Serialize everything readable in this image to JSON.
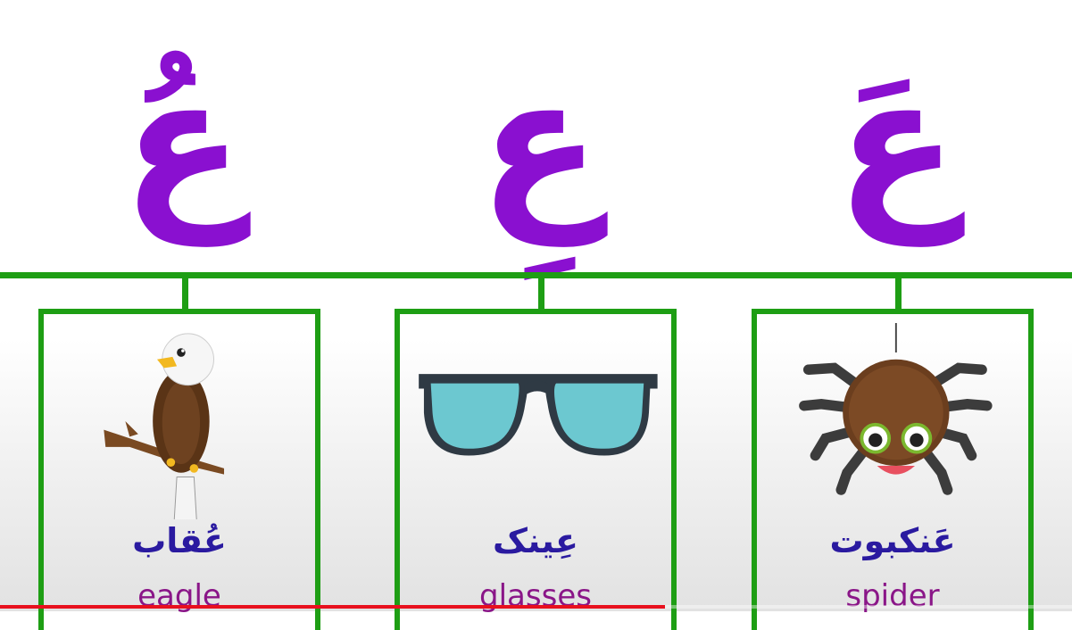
{
  "letters": [
    {
      "glyph": "عُ",
      "vowel": "damma"
    },
    {
      "glyph": "عِ",
      "vowel": "kasra"
    },
    {
      "glyph": "عَ",
      "vowel": "fatha"
    }
  ],
  "cards": [
    {
      "icon": "eagle-icon",
      "word": "عُقاب",
      "english": "eagle"
    },
    {
      "icon": "glasses-icon",
      "word": "عِینک",
      "english": "glasses"
    },
    {
      "icon": "spider-icon",
      "word": "عَنکبوت",
      "english": "spider"
    }
  ],
  "colors": {
    "letter": "#8a10d0",
    "vowel_mark": "#e8101e",
    "lines": "#1e9e14",
    "word": "#2a1aa0",
    "english": "#8a1688"
  },
  "video_progress": 0.62
}
